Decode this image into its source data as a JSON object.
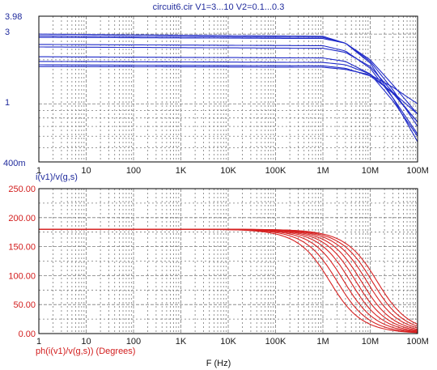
{
  "title": "circuit6.cir V1=3...10 V2=0.1...0.3",
  "xlabel": "F (Hz)",
  "x_ticks": [
    "1",
    "10",
    "100",
    "1K",
    "10K",
    "100K",
    "1M",
    "10M",
    "100M"
  ],
  "colors": {
    "top_trace": "#1f2ac8",
    "bottom_trace": "#d62020",
    "grid": "#7a7a7a",
    "frame": "#000000"
  },
  "chart_data": [
    {
      "type": "line",
      "scale": {
        "x": "log",
        "y": "log"
      },
      "xlim": [
        1,
        100000000
      ],
      "ylim": [
        0.4,
        3.98
      ],
      "y_ticks": [
        "3.98",
        "3",
        "1",
        "400m"
      ],
      "ylabel": "i(v1)/v(g,s)",
      "grid": true,
      "series": [
        {
          "values": [
            [
              1,
              3.0
            ],
            [
              1000000,
              2.9
            ],
            [
              3000000,
              2.6
            ],
            [
              10000000,
              1.9
            ],
            [
              30000000,
              1.1
            ],
            [
              100000000,
              0.55
            ]
          ]
        },
        {
          "values": [
            [
              1,
              2.92
            ],
            [
              1000000,
              2.85
            ],
            [
              3000000,
              2.6
            ],
            [
              10000000,
              1.95
            ],
            [
              30000000,
              1.25
            ],
            [
              100000000,
              0.7
            ]
          ]
        },
        {
          "values": [
            [
              1,
              2.85
            ],
            [
              1000000,
              2.8
            ],
            [
              3000000,
              2.6
            ],
            [
              10000000,
              2.0
            ],
            [
              30000000,
              1.35
            ],
            [
              100000000,
              0.85
            ]
          ]
        },
        {
          "values": [
            [
              1,
              2.55
            ],
            [
              1000000,
              2.5
            ],
            [
              3000000,
              2.3
            ],
            [
              10000000,
              1.75
            ],
            [
              30000000,
              1.1
            ],
            [
              100000000,
              0.62
            ]
          ]
        },
        {
          "values": [
            [
              1,
              2.45
            ],
            [
              1000000,
              2.4
            ],
            [
              3000000,
              2.25
            ],
            [
              10000000,
              1.8
            ],
            [
              30000000,
              1.2
            ],
            [
              100000000,
              0.75
            ]
          ]
        },
        {
          "values": [
            [
              1,
              2.1
            ],
            [
              1000000,
              2.06
            ],
            [
              3000000,
              1.95
            ],
            [
              10000000,
              1.6
            ],
            [
              30000000,
              1.05
            ],
            [
              100000000,
              0.6
            ]
          ]
        },
        {
          "values": [
            [
              1,
              1.95
            ],
            [
              1000000,
              1.92
            ],
            [
              3000000,
              1.85
            ],
            [
              10000000,
              1.6
            ],
            [
              30000000,
              1.18
            ],
            [
              100000000,
              0.75
            ]
          ]
        },
        {
          "values": [
            [
              1,
              1.85
            ],
            [
              1000000,
              1.82
            ],
            [
              3000000,
              1.75
            ],
            [
              10000000,
              1.55
            ],
            [
              30000000,
              1.2
            ],
            [
              100000000,
              0.85
            ]
          ]
        },
        {
          "values": [
            [
              1,
              1.8
            ],
            [
              1000000,
              1.78
            ],
            [
              3000000,
              1.72
            ],
            [
              10000000,
              1.58
            ],
            [
              30000000,
              1.3
            ],
            [
              100000000,
              1.0
            ]
          ]
        }
      ]
    },
    {
      "type": "line",
      "scale": {
        "x": "log",
        "y": "linear"
      },
      "xlim": [
        1,
        100000000
      ],
      "ylim": [
        0,
        250
      ],
      "y_ticks": [
        "0.00",
        "50.00",
        "100.00",
        "150.00",
        "200.00",
        "250.00"
      ],
      "ylabel": "ph(i(v1)/v(g,s)) (Degrees)",
      "grid": true,
      "series": [
        {
          "fc": 1400000
        },
        {
          "fc": 2000000
        },
        {
          "fc": 2800000
        },
        {
          "fc": 3800000
        },
        {
          "fc": 5000000
        },
        {
          "fc": 6500000
        },
        {
          "fc": 8500000
        },
        {
          "fc": 11000000
        },
        {
          "fc": 14000000
        }
      ]
    }
  ]
}
